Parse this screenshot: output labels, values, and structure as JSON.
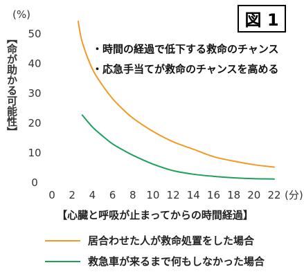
{
  "figure_label": "図 1",
  "y_unit": "(%)",
  "x_unit": "(分)",
  "ylabel": "【命が助かる可能性】",
  "xlabel": "【心臓と呼吸が止まってからの時間経過】",
  "annotations": [
    "・時間の経過で低下する救命のチャンス",
    "・応急手当てが救命のチャンスを高める"
  ],
  "colors": {
    "orange": "#f39a25",
    "green": "#1fa05a",
    "axis_text": "#333333"
  },
  "chart_data": {
    "type": "line",
    "title": "",
    "xlabel": "【心臓と呼吸が止まってからの時間経過】",
    "ylabel": "【命が助かる可能性】",
    "xlim": [
      0,
      22
    ],
    "ylim": [
      0,
      50
    ],
    "x_ticks": [
      0,
      2,
      4,
      6,
      8,
      10,
      12,
      14,
      16,
      18,
      20,
      22
    ],
    "y_ticks": [
      0,
      10,
      20,
      30,
      40,
      50
    ],
    "grid": false,
    "legend_position": "bottom",
    "series": [
      {
        "name": "居合わせた人が救命処置をした場合",
        "color": "#f39a25",
        "x": [
          2.6,
          3,
          4,
          5,
          6,
          7,
          8,
          10,
          12,
          14,
          16,
          18,
          20,
          22
        ],
        "values": [
          54,
          47,
          38,
          32.5,
          28,
          24.5,
          21.5,
          17,
          13.5,
          11,
          8.5,
          7,
          5.8,
          5
        ]
      },
      {
        "name": "救急車が来るまで何もしなかった場合",
        "color": "#1fa05a",
        "x": [
          3,
          4,
          5,
          6,
          7,
          8,
          10,
          12,
          14,
          16,
          18,
          20,
          22
        ],
        "values": [
          22.5,
          18.5,
          15.5,
          12.8,
          10.8,
          9,
          6,
          3.8,
          2.6,
          1.9,
          1.4,
          1.1,
          1
        ]
      }
    ]
  }
}
